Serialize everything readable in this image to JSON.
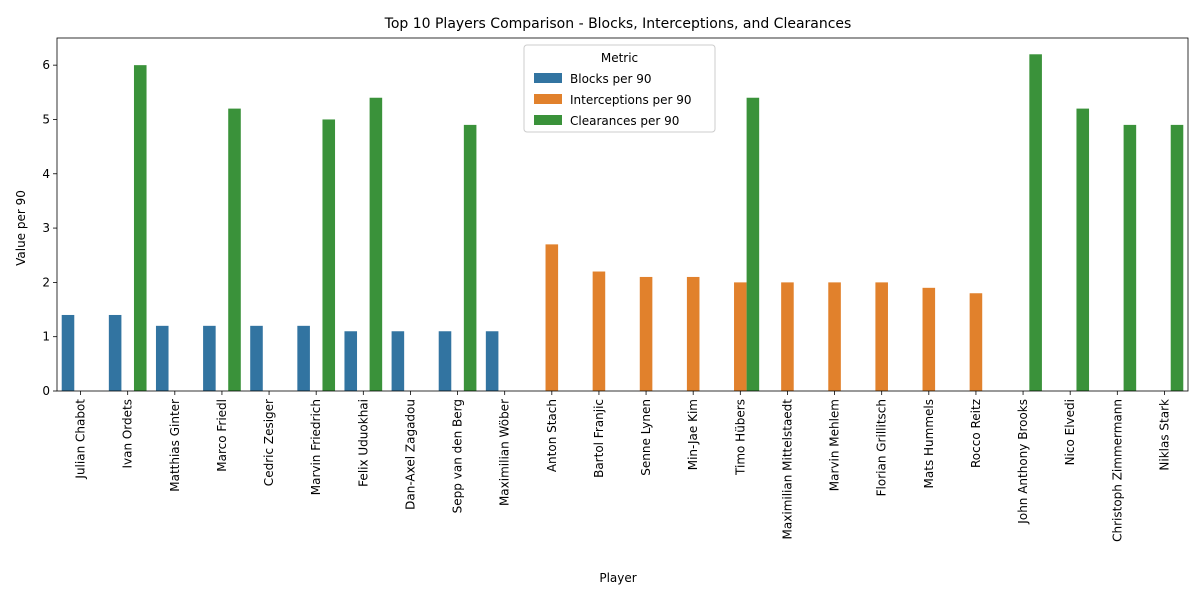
{
  "chart_data": {
    "type": "bar",
    "title": "Top 10 Players Comparison - Blocks, Interceptions, and Clearances",
    "xlabel": "Player",
    "ylabel": "Value per 90",
    "ylim": [
      0,
      6.5
    ],
    "yticks": [
      0,
      1,
      2,
      3,
      4,
      5,
      6
    ],
    "grid": false,
    "legend": {
      "title": "Metric",
      "placement": "top-center"
    },
    "categories": [
      "Julian Chabot",
      "Ivan Ordets",
      "Matthias Ginter",
      "Marco Friedl",
      "Cedric Zesiger",
      "Marvin Friedrich",
      "Felix Uduokhai",
      "Dan-Axel Zagadou",
      "Sepp van den Berg",
      "Maximilian Wöber",
      "Anton Stach",
      "Bartol Franjic",
      "Senne Lynen",
      "Min-Jae Kim",
      "Timo Hübers",
      "Maximilian Mittelstaedt",
      "Marvin Mehlem",
      "Florian Grillitsch",
      "Mats Hummels",
      "Rocco Reitz",
      "John Anthony Brooks",
      "Nico Elvedi",
      "Christoph Zimmermann",
      "Niklas Stark"
    ],
    "series": [
      {
        "name": "Blocks per 90",
        "color": "#3274a1",
        "values": [
          1.4,
          1.4,
          1.2,
          1.2,
          1.2,
          1.2,
          1.1,
          1.1,
          1.1,
          1.1,
          null,
          null,
          null,
          null,
          null,
          null,
          null,
          null,
          null,
          null,
          null,
          null,
          null,
          null
        ]
      },
      {
        "name": "Interceptions per 90",
        "color": "#e1812c",
        "values": [
          null,
          null,
          null,
          null,
          null,
          null,
          null,
          null,
          null,
          null,
          2.7,
          2.2,
          2.1,
          2.1,
          2.0,
          2.0,
          2.0,
          2.0,
          1.9,
          1.8,
          null,
          null,
          null,
          null
        ]
      },
      {
        "name": "Clearances per 90",
        "color": "#3a923a",
        "values": [
          null,
          6.0,
          null,
          5.2,
          null,
          5.0,
          5.4,
          null,
          4.9,
          null,
          null,
          null,
          null,
          null,
          5.4,
          null,
          null,
          null,
          null,
          null,
          6.2,
          5.2,
          4.9,
          4.9
        ]
      }
    ]
  }
}
